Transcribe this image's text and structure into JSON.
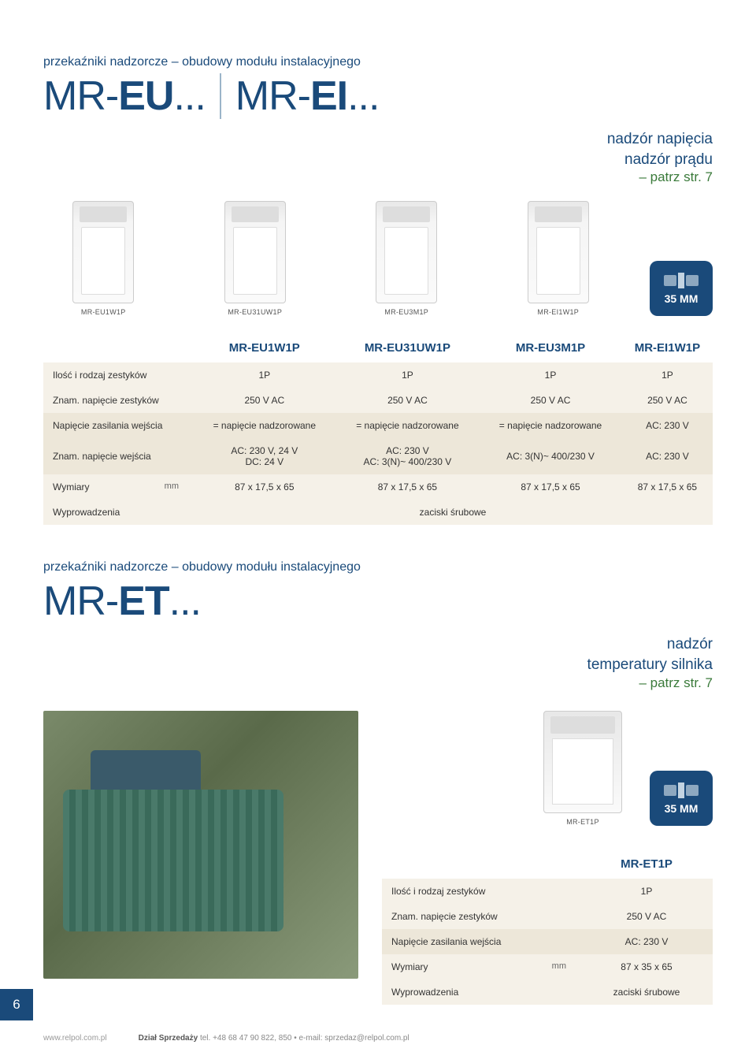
{
  "section1": {
    "category": "przekaźniki nadzorcze – obudowy modułu instalacyjnego",
    "model1_prefix": "MR-",
    "model1_bold": "EU",
    "model1_suffix": "...",
    "model2_prefix": "MR-",
    "model2_bold": "EI",
    "model2_suffix": "...",
    "feature_lines": [
      "nadzór napięcia",
      "nadzór prądu"
    ],
    "feature_sub": "– patrz str. 7",
    "badge_text": "35 MM",
    "products": [
      {
        "label": "MR-EU1W1P"
      },
      {
        "label": "MR-EU31UW1P"
      },
      {
        "label": "MR-EU3M1P"
      },
      {
        "label": "MR-EI1W1P"
      }
    ],
    "table": {
      "headers": [
        "",
        "MR-EU1W1P",
        "MR-EU31UW1P",
        "MR-EU3M1P",
        "MR-EI1W1P"
      ],
      "rows": [
        {
          "style": "light",
          "cells": [
            "Ilość i rodzaj zestyków",
            "1P",
            "1P",
            "1P",
            "1P"
          ]
        },
        {
          "style": "light",
          "cells": [
            "Znam. napięcie zestyków",
            "250 V AC",
            "250 V AC",
            "250 V AC",
            "250 V AC"
          ]
        },
        {
          "style": "dark",
          "cells": [
            "Napięcie zasilania wejścia",
            "= napięcie nadzorowane",
            "= napięcie nadzorowane",
            "= napięcie nadzorowane",
            "AC: 230 V"
          ]
        },
        {
          "style": "dark",
          "cells": [
            "Znam. napięcie wejścia",
            "AC: 230 V, 24 V\nDC: 24 V",
            "AC: 230 V\nAC: 3(N)~ 400/230 V",
            "AC: 3(N)~ 400/230 V",
            "AC: 230 V"
          ]
        },
        {
          "style": "light",
          "unit": "mm",
          "cells": [
            "Wymiary",
            "87 x 17,5 x 65",
            "87 x 17,5 x 65",
            "87 x 17,5 x 65",
            "87 x 17,5 x 65"
          ]
        },
        {
          "style": "light",
          "span": true,
          "cells": [
            "Wyprowadzenia",
            "zaciski śrubowe"
          ]
        }
      ]
    }
  },
  "section2": {
    "category": "przekaźniki nadzorcze – obudowy modułu instalacyjnego",
    "model_prefix": "MR-",
    "model_bold": "ET",
    "model_suffix": "...",
    "feature_lines": [
      "nadzór",
      "temperatury silnika"
    ],
    "feature_sub": "– patrz str. 7",
    "badge_text": "35 MM",
    "product_label": "MR-ET1P",
    "table": {
      "header": "MR-ET1P",
      "rows": [
        {
          "style": "light",
          "cells": [
            "Ilość i rodzaj zestyków",
            "1P"
          ]
        },
        {
          "style": "light",
          "cells": [
            "Znam. napięcie zestyków",
            "250 V AC"
          ]
        },
        {
          "style": "dark",
          "cells": [
            "Napięcie zasilania wejścia",
            "AC: 230 V"
          ]
        },
        {
          "style": "light",
          "unit": "mm",
          "cells": [
            "Wymiary",
            "87 x 35 x 65"
          ]
        },
        {
          "style": "light",
          "cells": [
            "Wyprowadzenia",
            "zaciski śrubowe"
          ]
        }
      ]
    }
  },
  "page_number": "6",
  "footer": {
    "url": "www.relpol.com.pl",
    "contact_label": "Dział Sprzedaży",
    "contact_text": " tel. +48 68 47 90 822, 850 • e-mail: sprzedaz@relpol.com.pl"
  },
  "colors": {
    "accent": "#1a4a7a",
    "green": "#3a7a3a",
    "row_light": "#f5f1e8",
    "row_dark": "#ede7d9"
  }
}
